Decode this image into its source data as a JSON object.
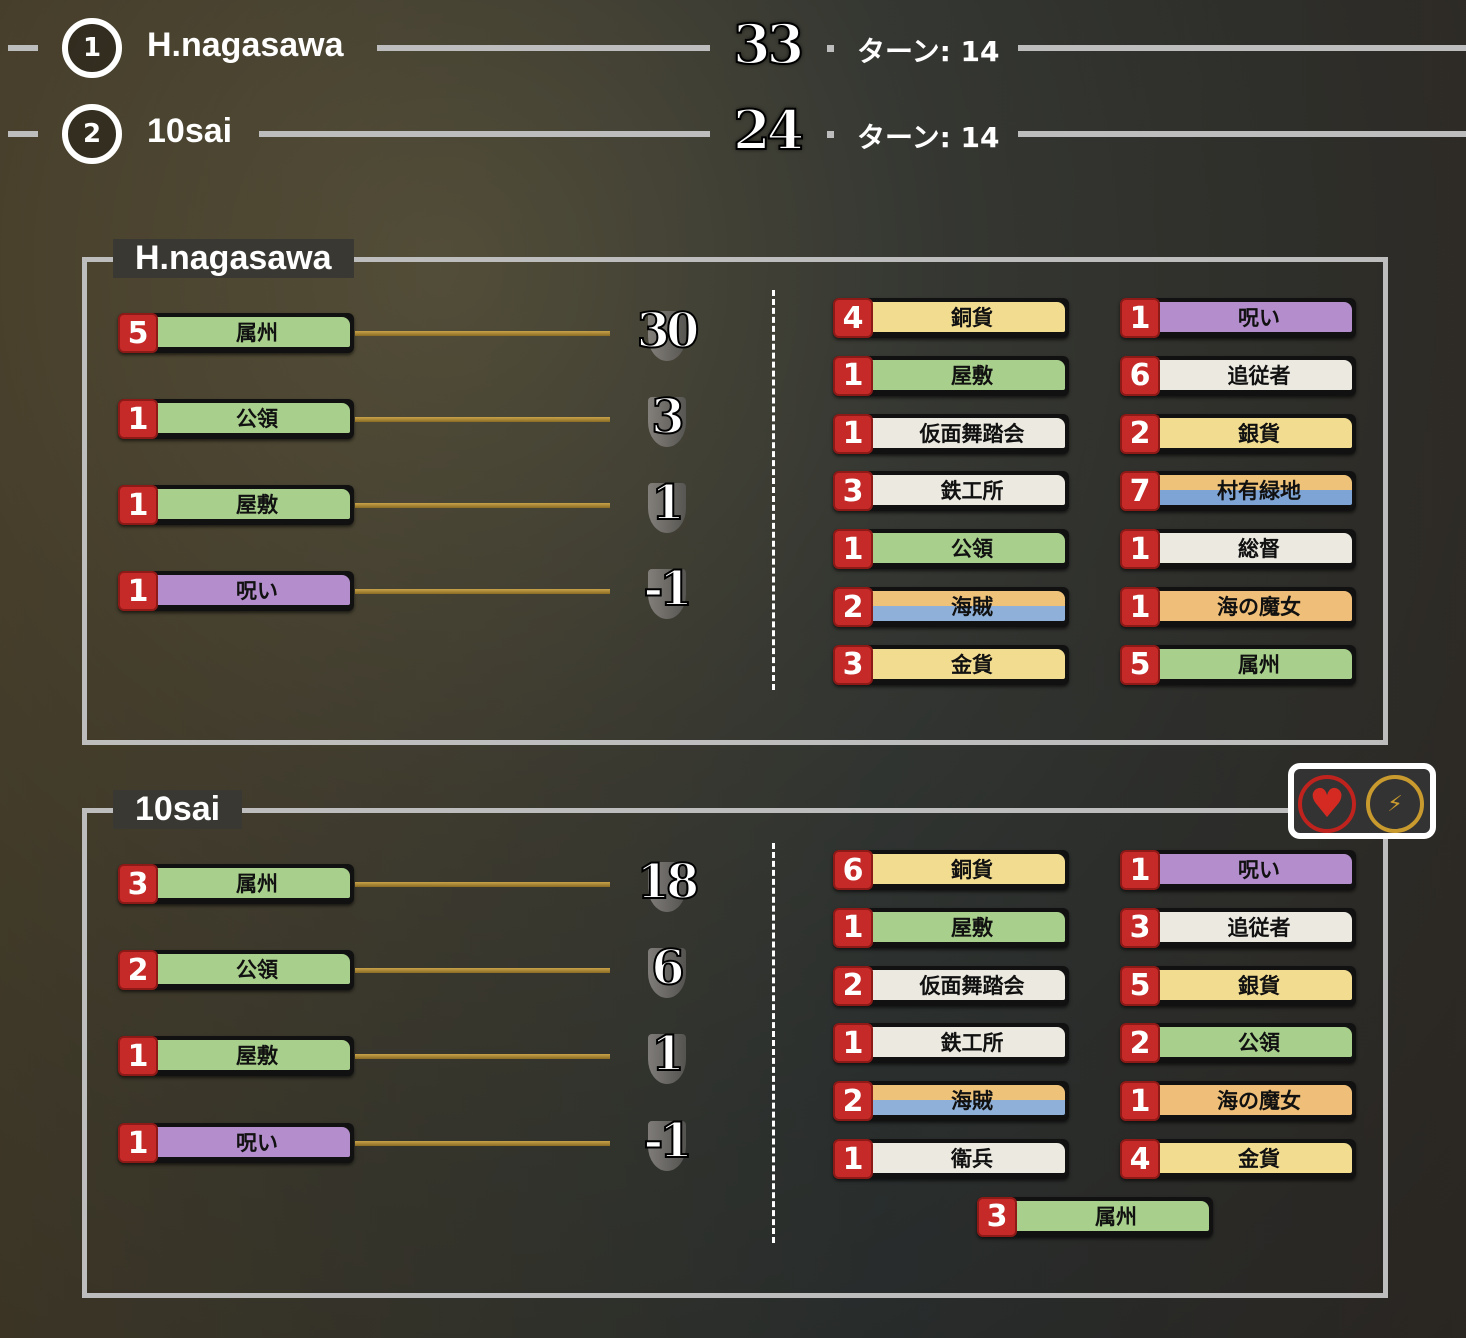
{
  "colors": {
    "treasure": "#f2dc90",
    "victory": "#a8d08c",
    "curse": "#b48ecc",
    "action": "#ece9e1",
    "reaction_victory": "linear-gradient(#efc27a 50%,#7ea4d6 50%)",
    "duration": "linear-gradient(#efc27a 50%,#8fb0d8 50%)",
    "night": "#efbe78",
    "badge": "#c62a28"
  },
  "standings": [
    {
      "rank": "1",
      "name": "H.nagasawa",
      "score": "33",
      "turn": "ターン: 14"
    },
    {
      "rank": "2",
      "name": "10sai",
      "score": "24",
      "turn": "ターン: 14"
    }
  ],
  "players": [
    {
      "name": "H.nagasawa",
      "breakdown": [
        {
          "count": "5",
          "card": "属州",
          "type": "victory",
          "points": "30"
        },
        {
          "count": "1",
          "card": "公領",
          "type": "victory",
          "points": "3"
        },
        {
          "count": "1",
          "card": "屋敷",
          "type": "victory",
          "points": "1"
        },
        {
          "count": "1",
          "card": "呪い",
          "type": "curse",
          "points": "-1"
        }
      ],
      "deck": [
        {
          "count": "4",
          "card": "銅貨",
          "type": "treasure"
        },
        {
          "count": "1",
          "card": "呪い",
          "type": "curse"
        },
        {
          "count": "1",
          "card": "屋敷",
          "type": "victory"
        },
        {
          "count": "6",
          "card": "追従者",
          "type": "action"
        },
        {
          "count": "1",
          "card": "仮面舞踏会",
          "type": "action"
        },
        {
          "count": "2",
          "card": "銀貨",
          "type": "treasure"
        },
        {
          "count": "3",
          "card": "鉄工所",
          "type": "action"
        },
        {
          "count": "7",
          "card": "村有緑地",
          "type": "reaction_victory"
        },
        {
          "count": "1",
          "card": "公領",
          "type": "victory"
        },
        {
          "count": "1",
          "card": "総督",
          "type": "action"
        },
        {
          "count": "2",
          "card": "海賊",
          "type": "duration"
        },
        {
          "count": "1",
          "card": "海の魔女",
          "type": "night"
        },
        {
          "count": "3",
          "card": "金貨",
          "type": "treasure"
        },
        {
          "count": "5",
          "card": "属州",
          "type": "victory"
        }
      ]
    },
    {
      "name": "10sai",
      "breakdown": [
        {
          "count": "3",
          "card": "属州",
          "type": "victory",
          "points": "18"
        },
        {
          "count": "2",
          "card": "公領",
          "type": "victory",
          "points": "6"
        },
        {
          "count": "1",
          "card": "屋敷",
          "type": "victory",
          "points": "1"
        },
        {
          "count": "1",
          "card": "呪い",
          "type": "curse",
          "points": "-1"
        }
      ],
      "deck": [
        {
          "count": "6",
          "card": "銅貨",
          "type": "treasure"
        },
        {
          "count": "1",
          "card": "呪い",
          "type": "curse"
        },
        {
          "count": "1",
          "card": "屋敷",
          "type": "victory"
        },
        {
          "count": "3",
          "card": "追従者",
          "type": "action"
        },
        {
          "count": "2",
          "card": "仮面舞踏会",
          "type": "action"
        },
        {
          "count": "5",
          "card": "銀貨",
          "type": "treasure"
        },
        {
          "count": "1",
          "card": "鉄工所",
          "type": "action"
        },
        {
          "count": "2",
          "card": "公領",
          "type": "victory"
        },
        {
          "count": "2",
          "card": "海賊",
          "type": "duration"
        },
        {
          "count": "1",
          "card": "海の魔女",
          "type": "night"
        },
        {
          "count": "1",
          "card": "衛兵",
          "type": "action"
        },
        {
          "count": "4",
          "card": "金貨",
          "type": "treasure"
        },
        {
          "count": "3",
          "card": "属州",
          "type": "victory"
        }
      ]
    }
  ],
  "icons": [
    "heart-icon",
    "lightning-icon"
  ]
}
